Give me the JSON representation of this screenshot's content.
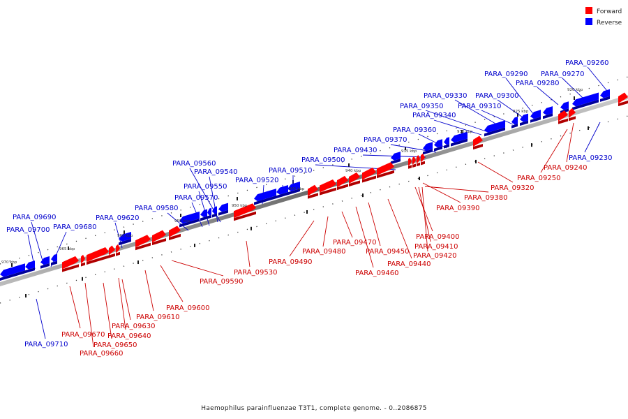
{
  "legend": [
    {
      "label": "Forward",
      "color": "#ff0000"
    },
    {
      "label": "Reverse",
      "color": "#0000ff"
    }
  ],
  "caption": "Haemophilus parainfluenzae T3T1, complete genome. - 0..2086875",
  "colors": {
    "forward": "#ff0000",
    "forward_dark": "#b00000",
    "reverse": "#0000ff",
    "reverse_dark": "#00009a",
    "forward_label": "#cc0000",
    "reverse_label": "#0000cc"
  },
  "ticks": [
    "920 kbp",
    "925 kbp",
    "930 kbp",
    "935 kbp",
    "940 kbp",
    "945 kbp",
    "950 kbp",
    "955 kbp",
    "960 kbp",
    "965 kbp",
    "970 kbp"
  ],
  "genes": [
    {
      "name": "PARA_09260",
      "strand": "reverse"
    },
    {
      "name": "PARA_09270",
      "strand": "reverse"
    },
    {
      "name": "PARA_09280",
      "strand": "reverse"
    },
    {
      "name": "PARA_09290",
      "strand": "reverse"
    },
    {
      "name": "PARA_09300",
      "strand": "reverse"
    },
    {
      "name": "PARA_09310",
      "strand": "reverse"
    },
    {
      "name": "PARA_09330",
      "strand": "reverse"
    },
    {
      "name": "PARA_09350",
      "strand": "reverse"
    },
    {
      "name": "PARA_09340",
      "strand": "reverse"
    },
    {
      "name": "PARA_09360",
      "strand": "reverse"
    },
    {
      "name": "PARA_09370",
      "strand": "reverse"
    },
    {
      "name": "PARA_09430",
      "strand": "reverse"
    },
    {
      "name": "PARA_09500",
      "strand": "reverse"
    },
    {
      "name": "PARA_09510",
      "strand": "reverse"
    },
    {
      "name": "PARA_09520",
      "strand": "reverse"
    },
    {
      "name": "PARA_09560",
      "strand": "reverse"
    },
    {
      "name": "PARA_09540",
      "strand": "reverse"
    },
    {
      "name": "PARA_09550",
      "strand": "reverse"
    },
    {
      "name": "PARA_09570",
      "strand": "reverse"
    },
    {
      "name": "PARA_09580",
      "strand": "reverse"
    },
    {
      "name": "PARA_09620",
      "strand": "reverse"
    },
    {
      "name": "PARA_09680",
      "strand": "reverse"
    },
    {
      "name": "PARA_09690",
      "strand": "reverse"
    },
    {
      "name": "PARA_09700",
      "strand": "reverse"
    },
    {
      "name": "PARA_09230",
      "strand": "reverse"
    },
    {
      "name": "PARA_09710",
      "strand": "reverse"
    },
    {
      "name": "PARA_09240",
      "strand": "forward"
    },
    {
      "name": "PARA_09250",
      "strand": "forward"
    },
    {
      "name": "PARA_09320",
      "strand": "forward"
    },
    {
      "name": "PARA_09380",
      "strand": "forward"
    },
    {
      "name": "PARA_09390",
      "strand": "forward"
    },
    {
      "name": "PARA_09400",
      "strand": "forward"
    },
    {
      "name": "PARA_09410",
      "strand": "forward"
    },
    {
      "name": "PARA_09420",
      "strand": "forward"
    },
    {
      "name": "PARA_09440",
      "strand": "forward"
    },
    {
      "name": "PARA_09450",
      "strand": "forward"
    },
    {
      "name": "PARA_09460",
      "strand": "forward"
    },
    {
      "name": "PARA_09470",
      "strand": "forward"
    },
    {
      "name": "PARA_09480",
      "strand": "forward"
    },
    {
      "name": "PARA_09490",
      "strand": "forward"
    },
    {
      "name": "PARA_09530",
      "strand": "forward"
    },
    {
      "name": "PARA_09590",
      "strand": "forward"
    },
    {
      "name": "PARA_09600",
      "strand": "forward"
    },
    {
      "name": "PARA_09610",
      "strand": "forward"
    },
    {
      "name": "PARA_09630",
      "strand": "forward"
    },
    {
      "name": "PARA_09640",
      "strand": "forward"
    },
    {
      "name": "PARA_09650",
      "strand": "forward"
    },
    {
      "name": "PARA_09660",
      "strand": "forward"
    },
    {
      "name": "PARA_09670",
      "strand": "forward"
    }
  ]
}
